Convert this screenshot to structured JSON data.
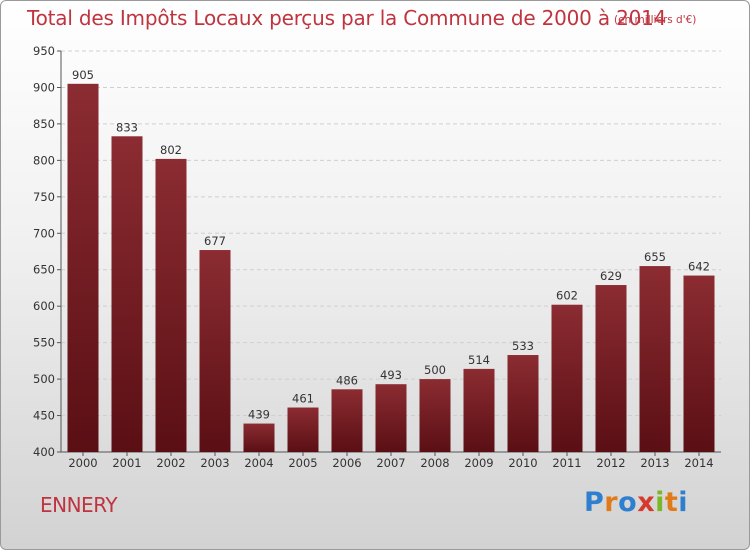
{
  "title": "Total des Impôts Locaux perçus par la Commune de 2000 à 2014",
  "subtitle": "(en milliers d'€)",
  "commune": "ENNERY",
  "logo": {
    "letters": [
      "P",
      "r",
      "o",
      "x",
      "i",
      "t",
      "i"
    ],
    "colors": [
      "#2e7fcf",
      "#e07b1a",
      "#2e7fcf",
      "#d63a2b",
      "#7ab829",
      "#e07b1a",
      "#2e7fcf"
    ]
  },
  "colors": {
    "bar_top": "#8b2c32",
    "bar_bottom": "#5a0f14",
    "title": "#c0343f"
  },
  "chart_data": {
    "type": "bar",
    "title": "Total des Impôts Locaux perçus par la Commune de 2000 à 2014",
    "xlabel": "",
    "ylabel": "",
    "ylim": [
      400,
      950
    ],
    "yticks": [
      400,
      450,
      500,
      550,
      600,
      650,
      700,
      750,
      800,
      850,
      900,
      950
    ],
    "grid": true,
    "categories": [
      "2000",
      "2001",
      "2002",
      "2003",
      "2004",
      "2005",
      "2006",
      "2007",
      "2008",
      "2009",
      "2010",
      "2011",
      "2012",
      "2013",
      "2014"
    ],
    "values": [
      905,
      833,
      802,
      677,
      439,
      461,
      486,
      493,
      500,
      514,
      533,
      602,
      629,
      655,
      642
    ]
  }
}
